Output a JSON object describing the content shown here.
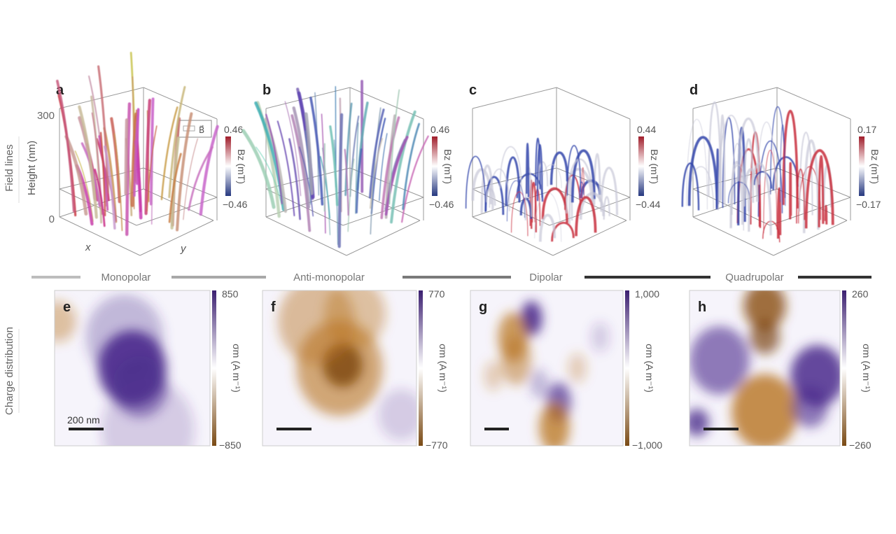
{
  "row_labels": {
    "top": "Field lines",
    "bottom": "Charge distribution"
  },
  "top_axis": {
    "ylabel": "Height (nm)",
    "ymax": "300",
    "ymin": "0",
    "xlabel": "x",
    "ylabel2": "y",
    "legend": "B⃗"
  },
  "top_panels": [
    {
      "letter": "a",
      "cbar_max": "0.46",
      "cbar_min": "−0.46",
      "cbar_label": "Bz (mT)",
      "dominant": "red"
    },
    {
      "letter": "b",
      "cbar_max": "0.46",
      "cbar_min": "−0.46",
      "cbar_label": "Bz (mT)",
      "dominant": "blue"
    },
    {
      "letter": "c",
      "cbar_max": "0.44",
      "cbar_min": "−0.44",
      "cbar_label": "Bz (mT)",
      "dominant": "mixed"
    },
    {
      "letter": "d",
      "cbar_max": "0.17",
      "cbar_min": "−0.17",
      "cbar_label": "Bz (mT)",
      "dominant": "mixed"
    }
  ],
  "categories": [
    {
      "label": "Monopolar",
      "color": "#bdbdbd"
    },
    {
      "label": "Anti-monopolar",
      "color": "#a8a8a8"
    },
    {
      "label": "Dipolar",
      "color": "#7a7a7a"
    },
    {
      "label": "Quadrupolar",
      "color": "#333333"
    }
  ],
  "bottom_panels": [
    {
      "letter": "e",
      "cbar_max": "850",
      "cbar_min": "−850",
      "cbar_label": "σm (A m⁻¹)",
      "scale_bar": "200 nm"
    },
    {
      "letter": "f",
      "cbar_max": "770",
      "cbar_min": "−770",
      "cbar_label": "σm (A m⁻¹)"
    },
    {
      "letter": "g",
      "cbar_max": "1,000",
      "cbar_min": "−1,000",
      "cbar_label": "σm (A m⁻¹)"
    },
    {
      "letter": "h",
      "cbar_max": "260",
      "cbar_min": "−260",
      "cbar_label": "σm (A m⁻¹)"
    }
  ],
  "colors": {
    "field_pos": "#c8323c",
    "field_neg": "#3548a0",
    "charge_pos": "#4a2a8c",
    "charge_neg": "#b8731e"
  }
}
